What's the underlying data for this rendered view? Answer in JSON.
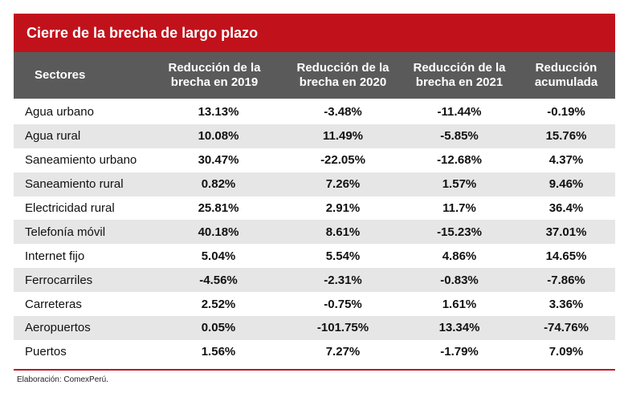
{
  "title": "Cierre de la brecha de largo plazo",
  "headers": {
    "sector": "Sectores",
    "y2019": "Reducción de la\nbrecha en 2019",
    "y2020": "Reducción de la\nbrecha en 2020",
    "y2021": "Reducción de la\nbrecha en 2021",
    "acum": "Reducción\nacumulada"
  },
  "rows": [
    {
      "sector": "Agua urbano",
      "y2019": "13.13%",
      "y2020": "-3.48%",
      "y2021": "-11.44%",
      "acum": "-0.19%"
    },
    {
      "sector": "Agua rural",
      "y2019": "10.08%",
      "y2020": "11.49%",
      "y2021": "-5.85%",
      "acum": "15.76%"
    },
    {
      "sector": "Saneamiento urbano",
      "y2019": "30.47%",
      "y2020": "-22.05%",
      "y2021": "-12.68%",
      "acum": "4.37%"
    },
    {
      "sector": "Saneamiento rural",
      "y2019": "0.82%",
      "y2020": "7.26%",
      "y2021": "1.57%",
      "acum": "9.46%"
    },
    {
      "sector": "Electricidad rural",
      "y2019": "25.81%",
      "y2020": "2.91%",
      "y2021": "11.7%",
      "acum": "36.4%"
    },
    {
      "sector": "Telefonía móvil",
      "y2019": "40.18%",
      "y2020": "8.61%",
      "y2021": "-15.23%",
      "acum": "37.01%"
    },
    {
      "sector": "Internet fijo",
      "y2019": "5.04%",
      "y2020": "5.54%",
      "y2021": "4.86%",
      "acum": "14.65%"
    },
    {
      "sector": "Ferrocarriles",
      "y2019": "-4.56%",
      "y2020": "-2.31%",
      "y2021": "-0.83%",
      "acum": "-7.86%"
    },
    {
      "sector": "Carreteras",
      "y2019": "2.52%",
      "y2020": "-0.75%",
      "y2021": "1.61%",
      "acum": "3.36%"
    },
    {
      "sector": "Aeropuertos",
      "y2019": "0.05%",
      "y2020": "-101.75%",
      "y2021": "13.34%",
      "acum": "-74.76%"
    },
    {
      "sector": "Puertos",
      "y2019": "1.56%",
      "y2020": "7.27%",
      "y2021": "-1.79%",
      "acum": "7.09%"
    }
  ],
  "footer": "Elaboración: ComexPerú.",
  "colors": {
    "accent": "#c1121b",
    "header_bg": "#5a5a5a",
    "stripe": "#e6e6e6"
  }
}
